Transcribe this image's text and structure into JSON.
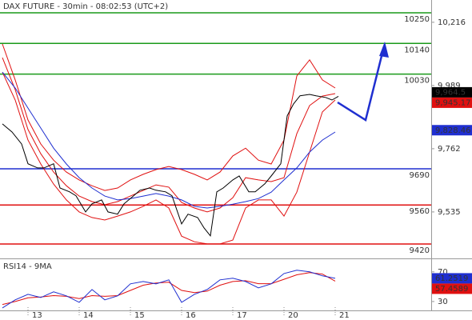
{
  "chart_data": [
    {
      "type": "line",
      "title": "DAX FUTURE - 30min - 08:02:53 (UTC+2)",
      "xlim": [
        -0.75,
        134
      ],
      "ylim": [
        9371,
        10296
      ],
      "yticks": [
        {
          "value": 9535,
          "label": "9,535"
        },
        {
          "value": 9762,
          "label": "9,762"
        },
        {
          "value": 9989,
          "label": "9,989"
        },
        {
          "value": 10216,
          "label": "10,216"
        }
      ],
      "levels": [
        {
          "value": 10250,
          "color": "#1a9a1a"
        },
        {
          "value": 10140,
          "color": "#1a9a1a"
        },
        {
          "value": 10030,
          "color": "#1a9a1a"
        },
        {
          "value": 9690,
          "color": "#1f2fd0"
        },
        {
          "value": 9560,
          "color": "#e01010"
        },
        {
          "value": 9420,
          "color": "#e01010"
        }
      ],
      "price_tags": [
        {
          "value": 9964.5,
          "label": "9,964.5",
          "color": "#000000"
        },
        {
          "value": 9945.17,
          "label": "9,945.17",
          "color": "#e01010"
        },
        {
          "value": 9828.46,
          "label": "9,828.46",
          "color": "#1f2fd0"
        }
      ],
      "series": [
        {
          "color": "#e01010",
          "x": [
            0,
            4,
            8,
            12,
            16,
            20,
            24,
            28,
            32,
            36,
            40,
            44,
            48,
            52,
            56,
            60,
            64,
            68,
            72,
            76,
            80,
            84,
            88,
            92,
            96,
            100,
            104
          ],
          "values": [
            10138,
            10009,
            9865,
            9779,
            9721,
            9678,
            9650,
            9629,
            9612,
            9621,
            9650,
            9670,
            9687,
            9698,
            9687,
            9670,
            9650,
            9678,
            9736,
            9764,
            9721,
            9707,
            9793,
            10023,
            10081,
            10009,
            9980
          ]
        },
        {
          "color": "#e01010",
          "x": [
            0,
            4,
            8,
            12,
            16,
            20,
            24,
            28,
            32,
            36,
            40,
            44,
            48,
            52,
            56,
            60,
            64,
            68,
            72,
            76,
            80,
            84,
            88,
            92,
            96,
            100,
            104
          ],
          "values": [
            10037,
            9937,
            9793,
            9707,
            9635,
            9578,
            9535,
            9515,
            9506,
            9520,
            9535,
            9555,
            9578,
            9549,
            9448,
            9428,
            9420,
            9420,
            9434,
            9549,
            9578,
            9578,
            9520,
            9606,
            9750,
            9894,
            9937
          ]
        },
        {
          "color": "#e01010",
          "x": [
            0,
            4,
            8,
            12,
            16,
            20,
            24,
            28,
            32,
            36,
            40,
            44,
            48,
            52,
            56,
            60,
            64,
            68,
            72,
            76,
            80,
            84,
            88,
            92,
            96,
            100,
            104
          ],
          "values": [
            10089,
            9974,
            9831,
            9744,
            9678,
            9629,
            9592,
            9572,
            9561,
            9572,
            9592,
            9612,
            9632,
            9624,
            9569,
            9549,
            9535,
            9549,
            9586,
            9658,
            9650,
            9644,
            9658,
            9816,
            9917,
            9951,
            9960
          ]
        },
        {
          "color": "#1f2fd0",
          "x": [
            0,
            4,
            8,
            12,
            16,
            20,
            24,
            28,
            32,
            36,
            40,
            44,
            48,
            52,
            56,
            60,
            64,
            68,
            72,
            76,
            80,
            84,
            88,
            92,
            96,
            100,
            104
          ],
          "values": [
            10037,
            9980,
            9908,
            9836,
            9764,
            9707,
            9658,
            9621,
            9592,
            9578,
            9583,
            9592,
            9601,
            9592,
            9578,
            9555,
            9549,
            9555,
            9563,
            9572,
            9583,
            9606,
            9650,
            9693,
            9750,
            9793,
            9822
          ]
        },
        {
          "color": "#000000",
          "x": [
            0,
            3,
            6,
            8,
            11,
            13,
            16,
            18,
            21,
            23,
            26,
            28,
            31,
            33,
            36,
            38,
            41,
            43,
            46,
            48,
            51,
            53,
            56,
            58,
            61,
            63,
            65,
            67,
            69,
            72,
            74,
            77,
            79,
            82,
            84,
            87,
            89,
            91,
            93,
            96,
            98,
            101,
            103,
            105
          ],
          "values": [
            9851,
            9822,
            9779,
            9708,
            9693,
            9693,
            9708,
            9621,
            9607,
            9593,
            9535,
            9564,
            9578,
            9535,
            9527,
            9564,
            9593,
            9613,
            9621,
            9613,
            9607,
            9593,
            9492,
            9527,
            9515,
            9478,
            9449,
            9607,
            9621,
            9650,
            9664,
            9607,
            9607,
            9636,
            9664,
            9708,
            9880,
            9923,
            9952,
            9957,
            9952,
            9946,
            9937,
            9950
          ]
        }
      ]
    },
    {
      "type": "line",
      "title": "RSI14 - 9MA",
      "xlim": [
        -0.75,
        134
      ],
      "ylim": [
        18,
        86
      ],
      "yticks": [
        30,
        70
      ],
      "xticks": [
        {
          "value": 8,
          "label": "13"
        },
        {
          "value": 24,
          "label": "14"
        },
        {
          "value": 40,
          "label": "15"
        },
        {
          "value": 56,
          "label": "16"
        },
        {
          "value": 72,
          "label": "17"
        },
        {
          "value": 88,
          "label": "20"
        },
        {
          "value": 104,
          "label": "21"
        }
      ],
      "price_tags": [
        {
          "value": 61.2519,
          "color": "#1f2fd0"
        },
        {
          "value": 57.4589,
          "color": "#e01010"
        }
      ],
      "series": [
        {
          "color": "#e01010",
          "x": [
            0,
            4,
            8,
            12,
            16,
            20,
            24,
            28,
            32,
            36,
            40,
            44,
            48,
            52,
            56,
            60,
            64,
            68,
            72,
            76,
            80,
            84,
            88,
            92,
            96,
            100,
            104
          ],
          "values": [
            26,
            30,
            35,
            36,
            38,
            37,
            34,
            38,
            37,
            38,
            45,
            52,
            55,
            56,
            45,
            42,
            44,
            52,
            57,
            58,
            54,
            54,
            60,
            66,
            69,
            67,
            57.5
          ]
        },
        {
          "color": "#1f2fd0",
          "x": [
            0,
            4,
            8,
            12,
            16,
            20,
            24,
            28,
            32,
            36,
            40,
            44,
            48,
            52,
            56,
            60,
            64,
            68,
            72,
            76,
            80,
            84,
            88,
            92,
            96,
            100,
            104
          ],
          "values": [
            21.4,
            32.2,
            39.7,
            35.4,
            43,
            37.6,
            28.9,
            46.2,
            32.2,
            37.6,
            53.8,
            57,
            53.8,
            59.2,
            28.9,
            39.7,
            46.2,
            59.2,
            61.4,
            57,
            48.4,
            53.8,
            67.8,
            72.2,
            70,
            64.6,
            61.3
          ]
        }
      ]
    }
  ]
}
